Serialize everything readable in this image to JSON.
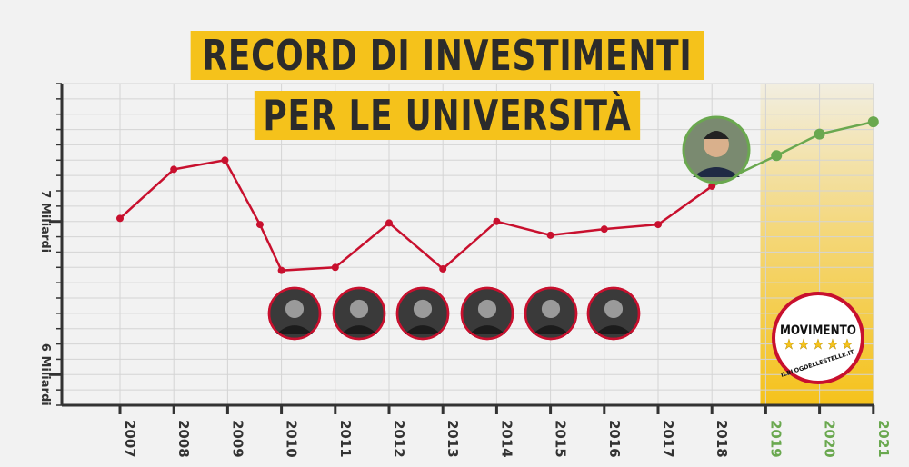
{
  "title_lines": [
    "RECORD DI INVESTIMENTI",
    "PER LE UNIVERSITÀ"
  ],
  "chart_data": {
    "type": "line",
    "title": "RECORD DI INVESTIMENTI PER LE UNIVERSITÀ",
    "categories": [
      "2007",
      "2008",
      "2009",
      "2010",
      "2011",
      "2012",
      "2013",
      "2014",
      "2015",
      "2016",
      "2017",
      "2018",
      "2019",
      "2020",
      "2021"
    ],
    "x": [
      2007,
      2008,
      2008.95,
      2009.6,
      2010,
      2011,
      2012,
      2013,
      2014,
      2015,
      2016,
      2017,
      2018,
      2019.2,
      2020,
      2021
    ],
    "y": [
      7.02,
      7.34,
      7.4,
      6.98,
      6.68,
      6.7,
      6.99,
      6.69,
      7.0,
      6.91,
      6.95,
      6.98,
      7.23,
      7.43,
      7.57,
      7.65
    ],
    "highlight_from_index": 13,
    "ylim": [
      5.8,
      7.9
    ],
    "yticks": [
      {
        "value": 7,
        "label": "7 Miliardi"
      },
      {
        "value": 6,
        "label": "6 Miliardi"
      }
    ],
    "highlight_categories": [
      "2019",
      "2020",
      "2021"
    ],
    "colors": {
      "line": "#c8102e",
      "highlight": "#6aa84f",
      "grid": "#d4d4d4",
      "band": "#f5c21b",
      "title_bg": "#f5c21b",
      "axis": "#333333"
    }
  },
  "portraits": [
    {
      "icon": "portrait-1-icon"
    },
    {
      "icon": "portrait-2-icon"
    },
    {
      "icon": "portrait-3-icon"
    },
    {
      "icon": "portrait-4-icon"
    },
    {
      "icon": "portrait-5-icon"
    },
    {
      "icon": "portrait-6-icon"
    }
  ],
  "featured_portrait": {
    "icon": "featured-portrait-icon"
  },
  "logo": {
    "text": "MOVIMENTO",
    "subtext": "ILBLOGDELLESTELLE.IT",
    "stars": 5
  }
}
